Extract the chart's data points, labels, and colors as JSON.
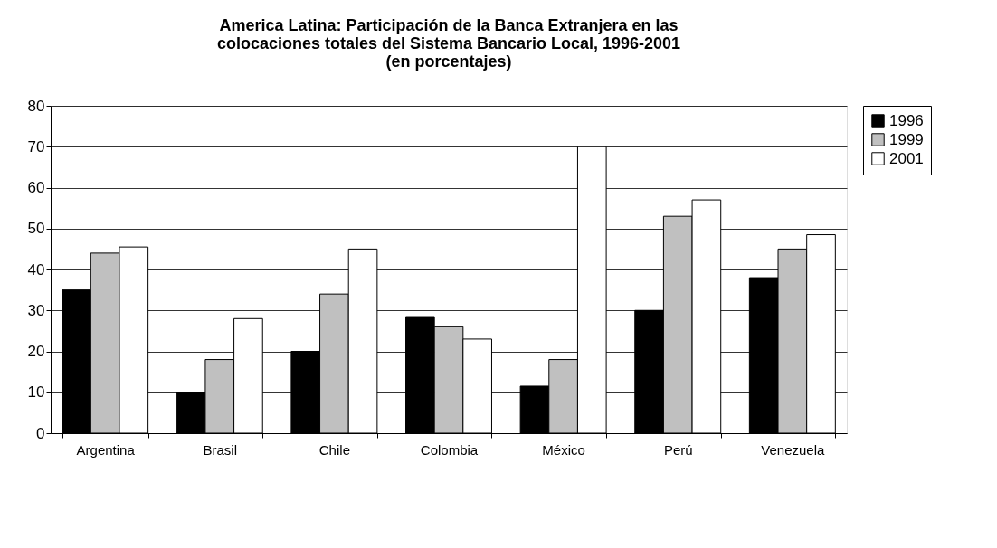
{
  "chart_data": {
    "type": "bar",
    "title": "America Latina: Participación de la Banca Extranjera en las\ncolocaciones totales del Sistema Bancario Local, 1996-2001\n(en porcentajes)",
    "categories": [
      "Argentina",
      "Brasil",
      "Chile",
      "Colombia",
      "México",
      "Perú",
      "Venezuela"
    ],
    "series": [
      {
        "name": "1996",
        "color": "#000000",
        "values": [
          35,
          10,
          20,
          28.5,
          11.5,
          30,
          38
        ]
      },
      {
        "name": "1999",
        "color": "#c0c0c0",
        "values": [
          44,
          18,
          34,
          26,
          18,
          53,
          45
        ]
      },
      {
        "name": "2001",
        "color": "#ffffff",
        "values": [
          45.5,
          28,
          45,
          23,
          70,
          57,
          48.5
        ]
      }
    ],
    "ylim": [
      0,
      80
    ],
    "yticks": [
      0,
      10,
      20,
      30,
      40,
      50,
      60,
      70,
      80
    ],
    "grid": "y",
    "legend": "right"
  }
}
